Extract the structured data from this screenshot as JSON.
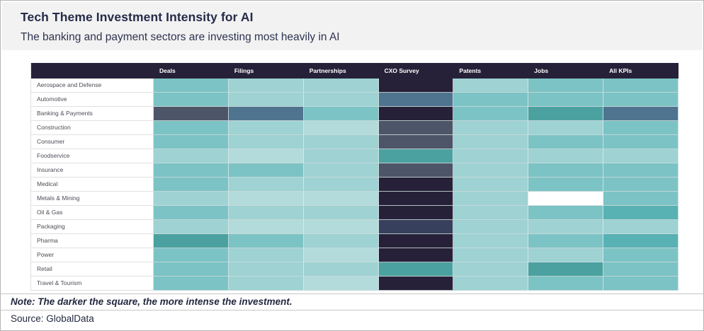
{
  "header": {
    "title": "Tech Theme Investment Intensity for AI",
    "subtitle": "The banking and payment sectors are investing most heavily in AI"
  },
  "footer": {
    "note": "Note: The darker the square, the more intense the investment.",
    "source": "Source: GlobalData"
  },
  "colors": {
    "title_band_bg": "#f2f2f2",
    "title_text": "#262b49",
    "table_header_bg": "#262138",
    "table_header_text": "#ffffff",
    "row_label_text": "#4c4d57",
    "outer_border": "#b5b5b5"
  },
  "chart_data": {
    "type": "heatmap",
    "title": "Tech Theme Investment Intensity for AI",
    "subtitle": "The banking and payment sectors are investing most heavily in AI",
    "legend_note": "The darker the square, the more intense the investment.",
    "source": "GlobalData",
    "columns": [
      "Deals",
      "Filings",
      "Partnerships",
      "CXO Survey",
      "Patents",
      "Jobs",
      "All KPIs"
    ],
    "intensity_palette": {
      "t1": "#b3dbdb",
      "t2": "#9ed2d3",
      "t3": "#7cc3c5",
      "t4": "#58b1b3",
      "t5": "#4ba1a0",
      "sb": "#4f7490",
      "sl": "#4d5568",
      "dn": "#37405c",
      "vn": "#262138",
      "w": "#ffffff"
    },
    "intensity_order_light_to_dark": [
      "w",
      "t1",
      "t2",
      "t3",
      "t4",
      "t5",
      "sb",
      "sl",
      "dn",
      "vn"
    ],
    "rows": [
      {
        "sector": "Aerospace and Defense",
        "cells": [
          "t3",
          "t2",
          "t2",
          "vn",
          "t2",
          "t3",
          "t3"
        ]
      },
      {
        "sector": "Automotive",
        "cells": [
          "t3",
          "t2",
          "t2",
          "sb",
          "t3",
          "t3",
          "t3"
        ]
      },
      {
        "sector": "Banking & Payments",
        "cells": [
          "sl",
          "sb",
          "t3",
          "vn",
          "t3",
          "t5",
          "sb"
        ]
      },
      {
        "sector": "Construction",
        "cells": [
          "t3",
          "t2",
          "t1",
          "sl",
          "t2",
          "t2",
          "t3"
        ]
      },
      {
        "sector": "Consumer",
        "cells": [
          "t3",
          "t2",
          "t2",
          "sl",
          "t2",
          "t3",
          "t3"
        ]
      },
      {
        "sector": "Foodservice",
        "cells": [
          "t2",
          "t1",
          "t2",
          "t5",
          "t2",
          "t2",
          "t2"
        ]
      },
      {
        "sector": "Insurance",
        "cells": [
          "t3",
          "t3",
          "t2",
          "sl",
          "t2",
          "t3",
          "t3"
        ]
      },
      {
        "sector": "Medical",
        "cells": [
          "t3",
          "t2",
          "t2",
          "vn",
          "t2",
          "t3",
          "t3"
        ]
      },
      {
        "sector": "Metals & Mining",
        "cells": [
          "t2",
          "t1",
          "t1",
          "vn",
          "t2",
          "w",
          "t3"
        ]
      },
      {
        "sector": "Oil & Gas",
        "cells": [
          "t3",
          "t2",
          "t2",
          "vn",
          "t2",
          "t3",
          "t4"
        ]
      },
      {
        "sector": "Packaging",
        "cells": [
          "t2",
          "t1",
          "t1",
          "dn",
          "t2",
          "t2",
          "t2"
        ]
      },
      {
        "sector": "Pharma",
        "cells": [
          "t5",
          "t3",
          "t2",
          "vn",
          "t2",
          "t3",
          "t4"
        ]
      },
      {
        "sector": "Power",
        "cells": [
          "t3",
          "t2",
          "t1",
          "vn",
          "t2",
          "t2",
          "t3"
        ]
      },
      {
        "sector": "Retail",
        "cells": [
          "t3",
          "t2",
          "t2",
          "t5",
          "t2",
          "t5",
          "t3"
        ]
      },
      {
        "sector": "Travel & Tourism",
        "cells": [
          "t3",
          "t2",
          "t1",
          "vn",
          "t2",
          "t3",
          "t3"
        ]
      }
    ]
  }
}
